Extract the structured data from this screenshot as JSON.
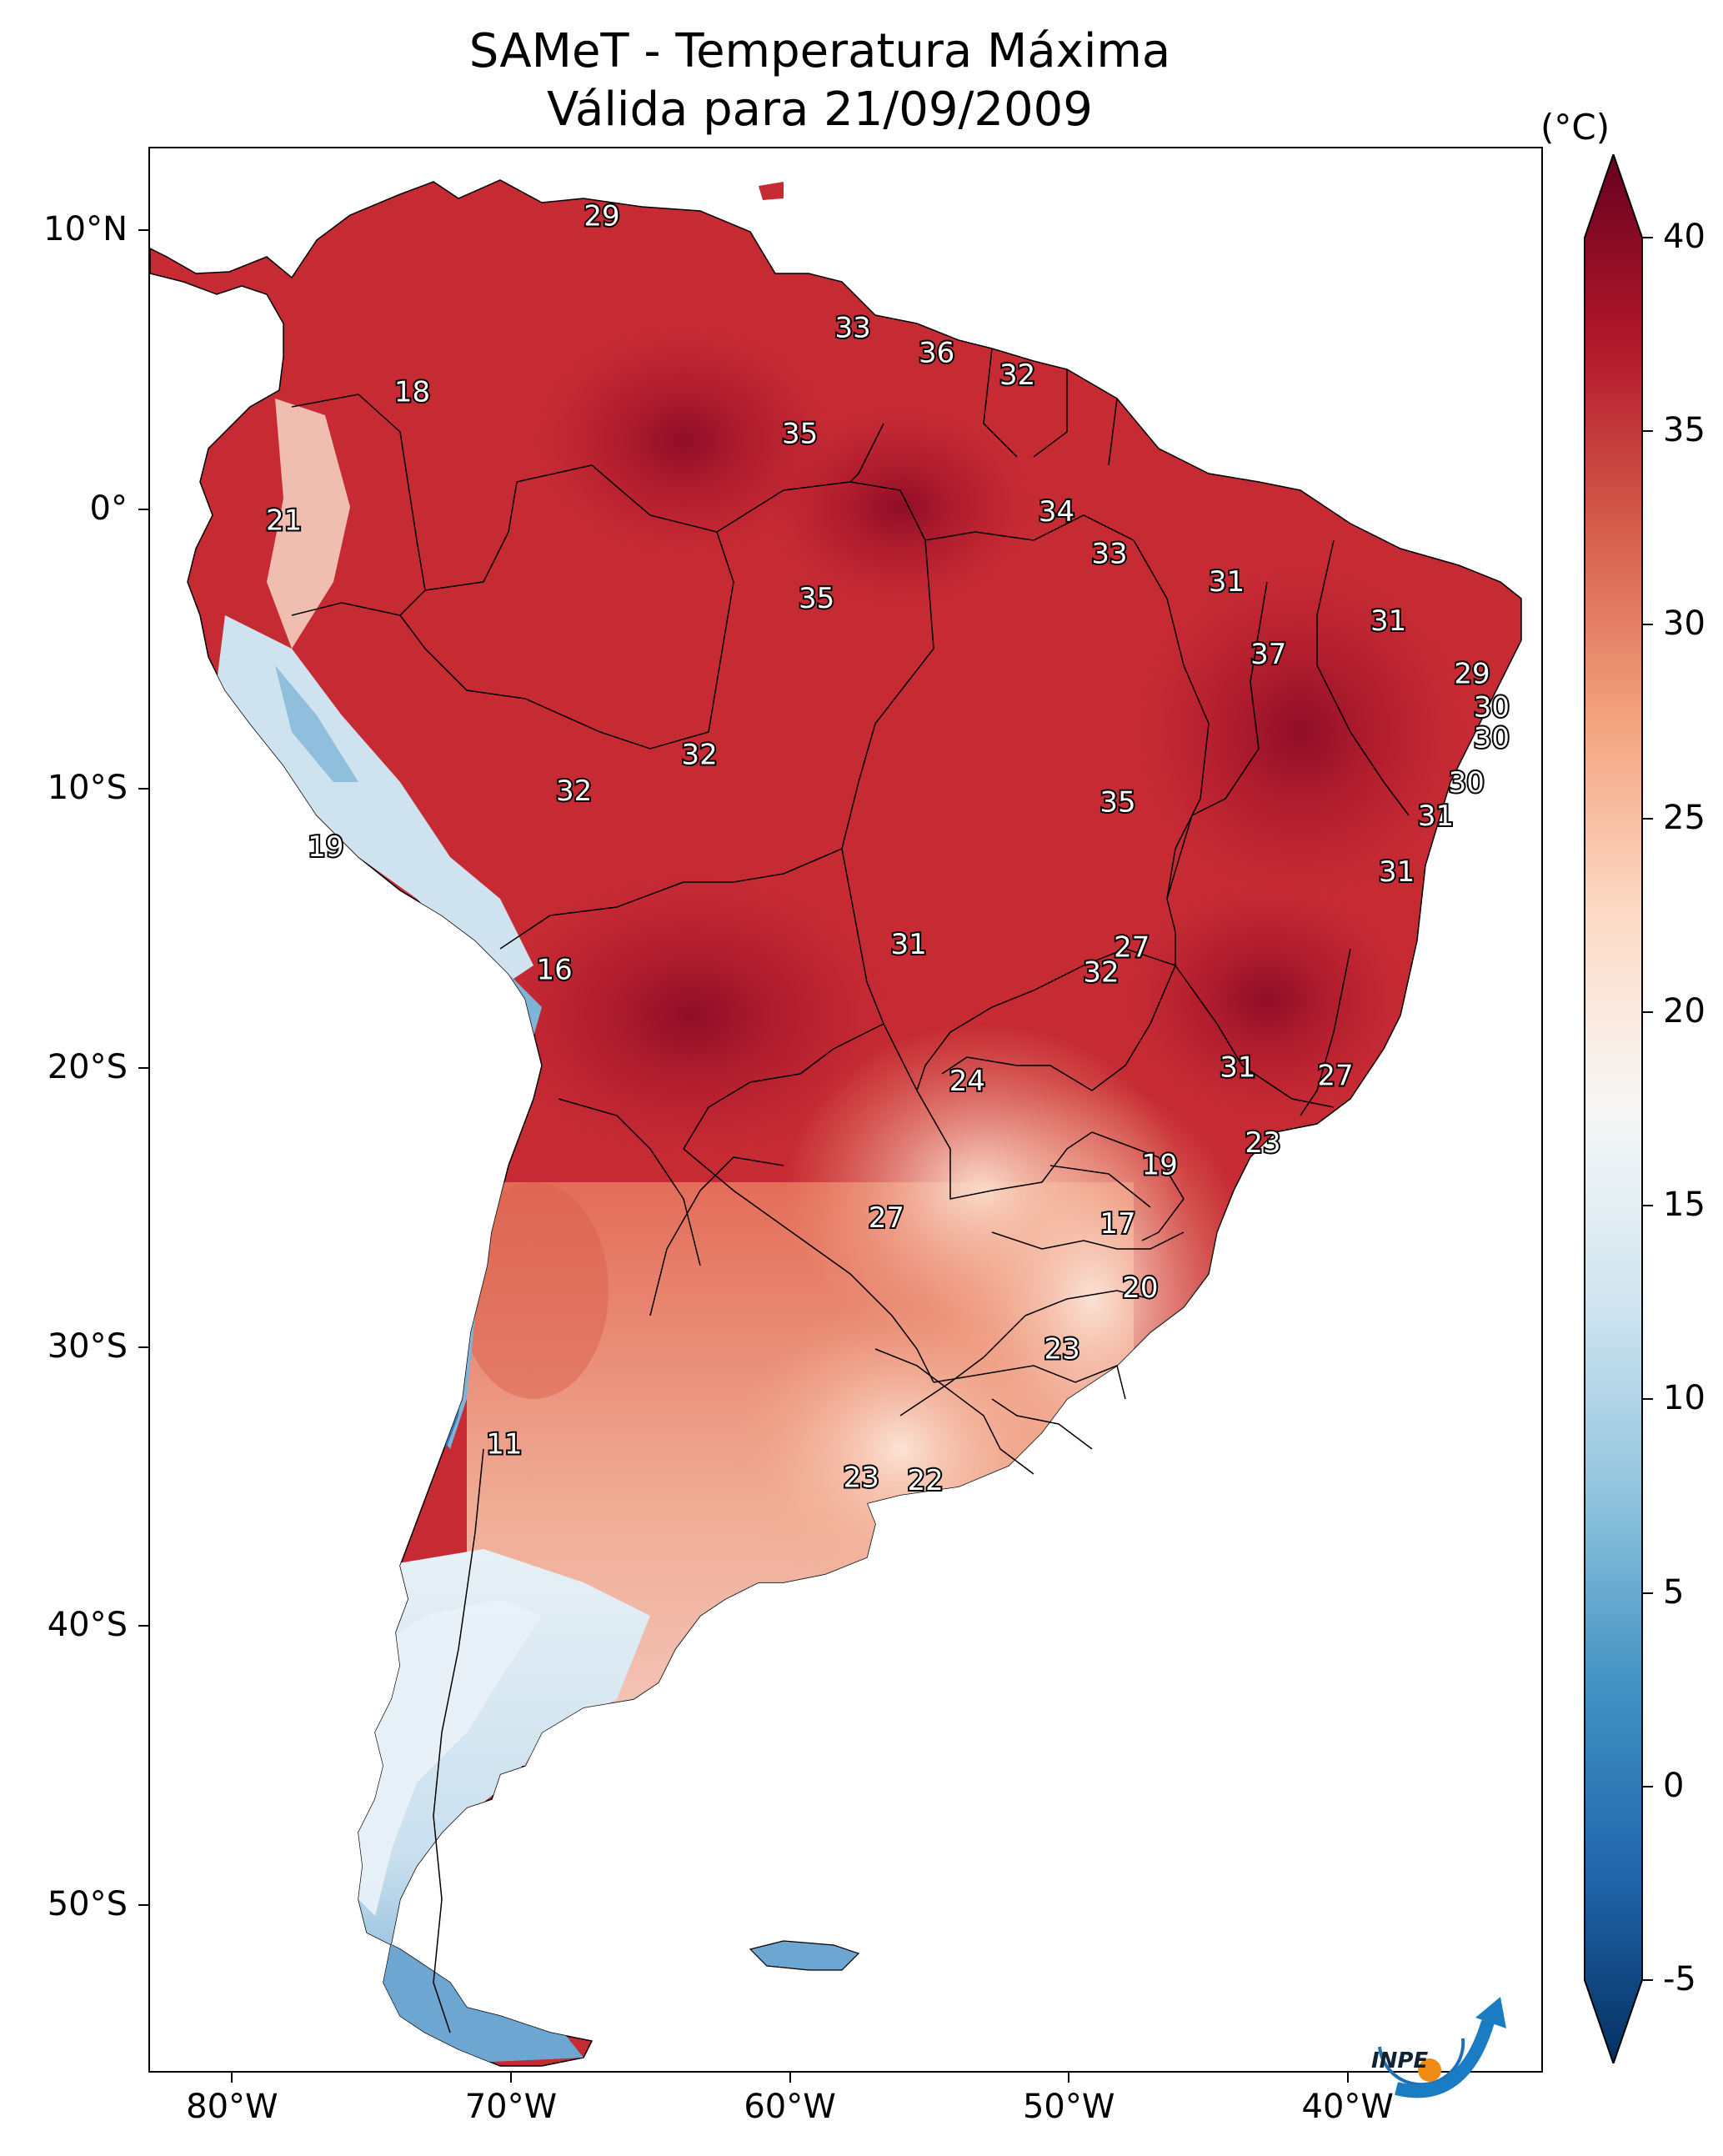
{
  "title": {
    "line1": "SAMeT - Temperatura Máxima",
    "line2": "Válida para 21/09/2009"
  },
  "colorbar": {
    "unit": "(°C)",
    "ticks": [
      "40",
      "35",
      "30",
      "25",
      "20",
      "15",
      "10",
      "5",
      "0",
      "-5"
    ],
    "range": [
      -7,
      42
    ],
    "colors": [
      "#053061",
      "#2166ac",
      "#4393c3",
      "#92c5de",
      "#d1e5f0",
      "#f7f7f7",
      "#fddbc7",
      "#f4a582",
      "#d6604d",
      "#b2182b",
      "#67001f"
    ]
  },
  "axes": {
    "lat_labels": [
      "10°N",
      "0°",
      "10°S",
      "20°S",
      "30°S",
      "40°S",
      "50°S"
    ],
    "lon_labels": [
      "80°W",
      "70°W",
      "60°W",
      "50°W",
      "40°W"
    ]
  },
  "map_values": [
    {
      "label": "29",
      "lon": -66.8,
      "lat": 10.6,
      "temp": 29
    },
    {
      "label": "33",
      "lon": -57.8,
      "lat": 6.6,
      "temp": 33
    },
    {
      "label": "36",
      "lon": -54.8,
      "lat": 5.7,
      "temp": 36
    },
    {
      "label": "32",
      "lon": -51.9,
      "lat": 4.9,
      "temp": 32
    },
    {
      "label": "18",
      "lon": -73.6,
      "lat": 4.3,
      "temp": 18
    },
    {
      "label": "35",
      "lon": -59.7,
      "lat": 2.8,
      "temp": 35
    },
    {
      "label": "34",
      "lon": -50.5,
      "lat": 0.0,
      "temp": 34
    },
    {
      "label": "21",
      "lon": -78.2,
      "lat": -0.3,
      "temp": 21
    },
    {
      "label": "33",
      "lon": -48.6,
      "lat": -1.5,
      "temp": 33
    },
    {
      "label": "31",
      "lon": -44.4,
      "lat": -2.5,
      "temp": 31
    },
    {
      "label": "35",
      "lon": -59.1,
      "lat": -3.1,
      "temp": 35
    },
    {
      "label": "31",
      "lon": -38.6,
      "lat": -3.9,
      "temp": 31
    },
    {
      "label": "37",
      "lon": -42.9,
      "lat": -5.1,
      "temp": 37
    },
    {
      "label": "29",
      "lon": -35.6,
      "lat": -5.8,
      "temp": 29
    },
    {
      "label": "30",
      "lon": -34.9,
      "lat": -7.0,
      "temp": 30
    },
    {
      "label": "30",
      "lon": -34.9,
      "lat": -8.1,
      "temp": 30
    },
    {
      "label": "32",
      "lon": -63.3,
      "lat": -8.7,
      "temp": 32
    },
    {
      "label": "30",
      "lon": -35.8,
      "lat": -9.7,
      "temp": 30
    },
    {
      "label": "32",
      "lon": -67.8,
      "lat": -10.0,
      "temp": 32
    },
    {
      "label": "35",
      "lon": -48.3,
      "lat": -10.4,
      "temp": 35
    },
    {
      "label": "31",
      "lon": -36.9,
      "lat": -10.9,
      "temp": 31
    },
    {
      "label": "19",
      "lon": -76.7,
      "lat": -12.0,
      "temp": 19
    },
    {
      "label": "31",
      "lon": -38.3,
      "lat": -12.9,
      "temp": 31
    },
    {
      "label": "27",
      "lon": -47.8,
      "lat": -15.6,
      "temp": 27
    },
    {
      "label": "31",
      "lon": -55.8,
      "lat": -15.5,
      "temp": 31
    },
    {
      "label": "16",
      "lon": -68.5,
      "lat": -16.4,
      "temp": 16
    },
    {
      "label": "32",
      "lon": -48.9,
      "lat": -16.5,
      "temp": 32
    },
    {
      "label": "31",
      "lon": -44.0,
      "lat": -19.9,
      "temp": 31
    },
    {
      "label": "27",
      "lon": -40.5,
      "lat": -20.2,
      "temp": 27
    },
    {
      "label": "24",
      "lon": -53.7,
      "lat": -20.4,
      "temp": 24
    },
    {
      "label": "23",
      "lon": -43.1,
      "lat": -22.6,
      "temp": 23
    },
    {
      "label": "19",
      "lon": -46.8,
      "lat": -23.4,
      "temp": 19
    },
    {
      "label": "17",
      "lon": -48.3,
      "lat": -25.5,
      "temp": 17
    },
    {
      "label": "27",
      "lon": -56.6,
      "lat": -25.3,
      "temp": 27
    },
    {
      "label": "20",
      "lon": -47.5,
      "lat": -27.8,
      "temp": 20
    },
    {
      "label": "23",
      "lon": -50.3,
      "lat": -30.0,
      "temp": 23
    },
    {
      "label": "11",
      "lon": -70.3,
      "lat": -33.4,
      "temp": 11
    },
    {
      "label": "23",
      "lon": -57.5,
      "lat": -34.6,
      "temp": 23
    },
    {
      "label": "22",
      "lon": -55.2,
      "lat": -34.7,
      "temp": 22
    }
  ],
  "logo": {
    "text": "INPE"
  }
}
